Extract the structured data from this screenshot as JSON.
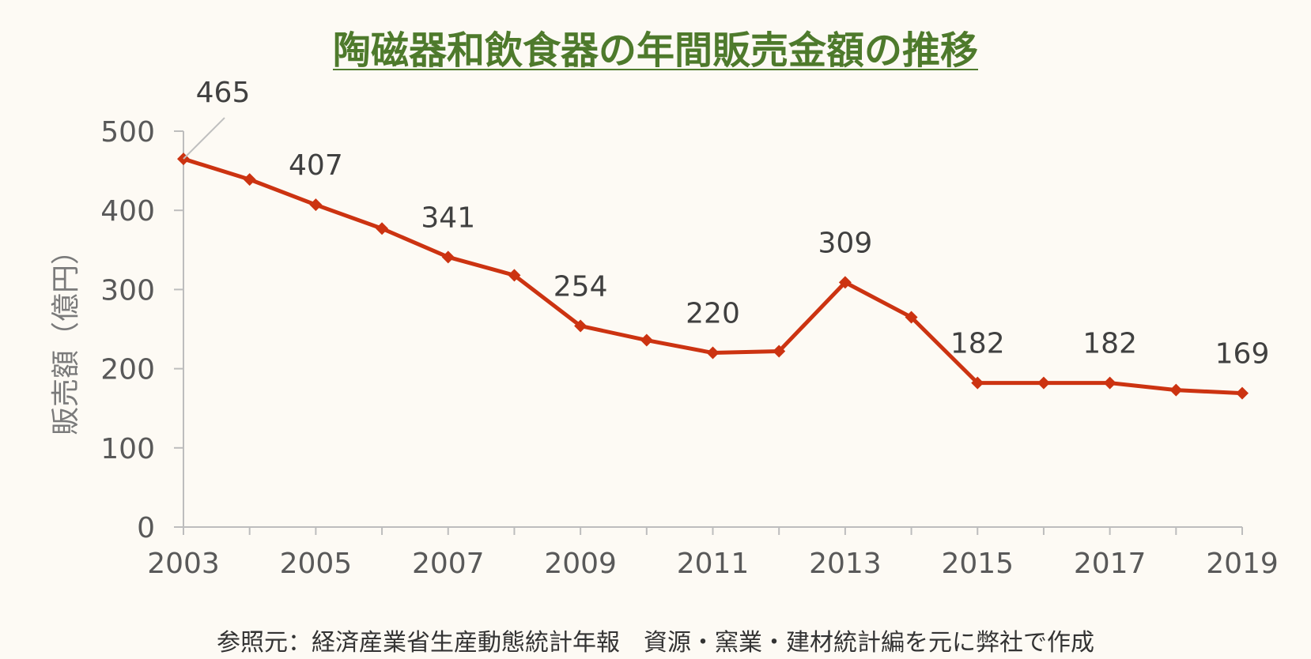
{
  "chart_data": {
    "type": "line",
    "title": "陶磁器和飲食器の年間販売金額の推移",
    "xlabel": "",
    "ylabel": "販売額（億円）",
    "x": [
      2003,
      2004,
      2005,
      2006,
      2007,
      2008,
      2009,
      2010,
      2011,
      2012,
      2013,
      2014,
      2015,
      2016,
      2017,
      2018,
      2019
    ],
    "x_tick_labels": [
      "2003",
      "2005",
      "2007",
      "2009",
      "2011",
      "2013",
      "2015",
      "2017",
      "2019"
    ],
    "y_tick_labels": [
      "0",
      "100",
      "200",
      "300",
      "400",
      "500"
    ],
    "ylim": [
      0,
      500
    ],
    "xlim": [
      2003,
      2019
    ],
    "grid": false,
    "series": [
      {
        "values": [
          465,
          439,
          407,
          377,
          341,
          318,
          254,
          236,
          220,
          222,
          309,
          265,
          182,
          182,
          182,
          173,
          169
        ],
        "color": "#cc3311",
        "marker": "diamond"
      }
    ],
    "data_labels": [
      {
        "x": 2003,
        "text": "465"
      },
      {
        "x": 2005,
        "text": "407"
      },
      {
        "x": 2007,
        "text": "341"
      },
      {
        "x": 2009,
        "text": "254"
      },
      {
        "x": 2011,
        "text": "220"
      },
      {
        "x": 2013,
        "text": "309"
      },
      {
        "x": 2015,
        "text": "182"
      },
      {
        "x": 2017,
        "text": "182"
      },
      {
        "x": 2019,
        "text": "169"
      }
    ],
    "source": "参照元：経済産業省生産動態統計年報　資源・窯業・建材統計編を元に弊社で作成"
  }
}
